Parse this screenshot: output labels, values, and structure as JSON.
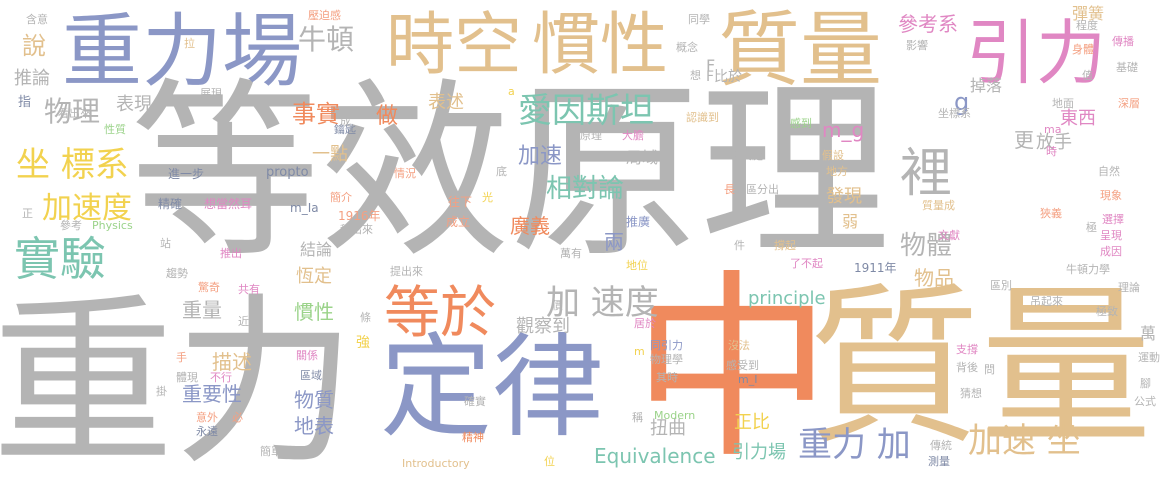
{
  "colors": {
    "gray": "#b4b4b4",
    "blue": "#8b97c6",
    "tan": "#e2c08d",
    "orange": "#f08a5d",
    "pink": "#e087c3",
    "green": "#9bd38a",
    "teal": "#7cc5b0",
    "yellow": "#f2d24f",
    "coral": "#f4a082",
    "slate": "#7f8aa6"
  },
  "words": [
    {
      "text": "等效原理",
      "color": "gray"
    },
    {
      "text": "重力",
      "color": "gray"
    },
    {
      "text": "質量",
      "color": "tan"
    },
    {
      "text": "中",
      "color": "orange"
    },
    {
      "text": "定律",
      "color": "blue"
    },
    {
      "text": "重力場",
      "color": "blue"
    },
    {
      "text": "時空",
      "color": "tan"
    },
    {
      "text": "慣性",
      "color": "tan"
    },
    {
      "text": "質量",
      "color": "tan"
    },
    {
      "text": "引力",
      "color": "pink"
    },
    {
      "text": "等於",
      "color": "orange"
    },
    {
      "text": "實驗",
      "color": "teal"
    },
    {
      "text": "坐 標系",
      "color": "yellow"
    },
    {
      "text": "愛因斯坦",
      "color": "teal"
    },
    {
      "text": "裡",
      "color": "gray"
    },
    {
      "text": "加 速度",
      "color": "gray"
    },
    {
      "text": "加速 坐",
      "color": "tan"
    },
    {
      "text": "重力 加",
      "color": "blue"
    },
    {
      "text": "物理",
      "color": "gray"
    },
    {
      "text": "加速度",
      "color": "yellow"
    },
    {
      "text": "牛頓",
      "color": "gray"
    },
    {
      "text": "事實",
      "color": "orange"
    },
    {
      "text": "相對論",
      "color": "teal"
    },
    {
      "text": "加速",
      "color": "blue"
    },
    {
      "text": "物體",
      "color": "gray"
    },
    {
      "text": "參考系",
      "color": "pink"
    },
    {
      "text": "說",
      "color": "tan"
    },
    {
      "text": "Equivalence",
      "color": "teal"
    },
    {
      "text": "principle",
      "color": "teal"
    },
    {
      "text": "m_g",
      "color": "pink"
    },
    {
      "text": "g",
      "color": "blue"
    },
    {
      "text": "F",
      "color": "gray"
    },
    {
      "text": "F比於",
      "color": "gray"
    },
    {
      "text": "物品",
      "color": "tan"
    },
    {
      "text": "東西",
      "color": "pink"
    },
    {
      "text": "更",
      "color": "gray"
    },
    {
      "text": "放手",
      "color": "gray"
    },
    {
      "text": "表現",
      "color": "gray"
    },
    {
      "text": "表述",
      "color": "tan"
    },
    {
      "text": "推論",
      "color": "gray"
    },
    {
      "text": "做",
      "color": "orange"
    },
    {
      "text": "慣性",
      "color": "green"
    },
    {
      "text": "重量",
      "color": "gray"
    },
    {
      "text": "物質",
      "color": "blue"
    },
    {
      "text": "描述",
      "color": "tan"
    },
    {
      "text": "重要性",
      "color": "blue"
    },
    {
      "text": "地表",
      "color": "blue"
    },
    {
      "text": "觀察到",
      "color": "gray"
    },
    {
      "text": "扭曲",
      "color": "gray"
    },
    {
      "text": "引力場",
      "color": "teal"
    },
    {
      "text": "正比",
      "color": "yellow"
    },
    {
      "text": "廣義",
      "color": "orange"
    },
    {
      "text": "兩",
      "color": "blue"
    },
    {
      "text": "發現",
      "color": "tan"
    },
    {
      "text": "弱",
      "color": "tan"
    },
    {
      "text": "恆定",
      "color": "tan"
    },
    {
      "text": "結論",
      "color": "gray"
    },
    {
      "text": "一點",
      "color": "tan"
    },
    {
      "text": "掉落",
      "color": "gray"
    },
    {
      "text": "彈簧",
      "color": "tan"
    },
    {
      "text": "局域",
      "color": "gray"
    },
    {
      "text": "進一步",
      "color": "slate"
    },
    {
      "text": "propto",
      "color": "slate"
    },
    {
      "text": "精確",
      "color": "slate"
    },
    {
      "text": "想當然耳",
      "color": "pink"
    },
    {
      "text": "m_Ia",
      "color": "slate"
    },
    {
      "text": "1916年",
      "color": "coral"
    },
    {
      "text": "1911年",
      "color": "slate"
    },
    {
      "text": "秤出來",
      "color": "gray"
    },
    {
      "text": "Physics",
      "color": "green"
    },
    {
      "text": "參考",
      "color": "gray"
    },
    {
      "text": "簡介",
      "color": "coral"
    },
    {
      "text": "情況",
      "color": "coral"
    },
    {
      "text": "成立",
      "color": "coral"
    },
    {
      "text": "往下",
      "color": "coral"
    },
    {
      "text": "推廣",
      "color": "blue"
    },
    {
      "text": "萬有",
      "color": "gray"
    },
    {
      "text": "地位",
      "color": "yellow"
    },
    {
      "text": "提出來",
      "color": "gray"
    },
    {
      "text": "趨勢",
      "color": "gray"
    },
    {
      "text": "驚奇",
      "color": "coral"
    },
    {
      "text": "共有",
      "color": "pink"
    },
    {
      "text": "近代",
      "color": "gray"
    },
    {
      "text": "推出",
      "color": "pink"
    },
    {
      "text": "站",
      "color": "gray"
    },
    {
      "text": "物質處",
      "color": "gray"
    },
    {
      "text": "假設",
      "color": "tan"
    },
    {
      "text": "地方",
      "color": "tan"
    },
    {
      "text": "長",
      "color": "coral"
    },
    {
      "text": "區分出",
      "color": "gray"
    },
    {
      "text": "感到",
      "color": "green"
    },
    {
      "text": "認識到",
      "color": "tan"
    },
    {
      "text": "原理",
      "color": "gray"
    },
    {
      "text": "大膽",
      "color": "pink"
    },
    {
      "text": "光",
      "color": "yellow"
    },
    {
      "text": "底",
      "color": "gray"
    },
    {
      "text": "同引力",
      "color": "blue"
    },
    {
      "text": "沒法",
      "color": "tan"
    },
    {
      "text": "物理學",
      "color": "gray"
    },
    {
      "text": "其時",
      "color": "gray"
    },
    {
      "text": "感受到",
      "color": "gray"
    },
    {
      "text": "m_I",
      "color": "slate"
    },
    {
      "text": "m",
      "color": "yellow"
    },
    {
      "text": "Modern",
      "color": "green"
    },
    {
      "text": "Introductory",
      "color": "tan"
    },
    {
      "text": "精神",
      "color": "orange"
    },
    {
      "text": "確實",
      "color": "gray"
    },
    {
      "text": "稱",
      "color": "gray"
    },
    {
      "text": "位",
      "color": "yellow"
    },
    {
      "text": "價",
      "color": "gray"
    },
    {
      "text": "居於",
      "color": "pink"
    },
    {
      "text": "條",
      "color": "gray"
    },
    {
      "text": "強",
      "color": "yellow"
    },
    {
      "text": "關係",
      "color": "pink"
    },
    {
      "text": "區域",
      "color": "slate"
    },
    {
      "text": "體現",
      "color": "gray"
    },
    {
      "text": "不行",
      "color": "pink"
    },
    {
      "text": "意外",
      "color": "coral"
    },
    {
      "text": "必",
      "color": "coral"
    },
    {
      "text": "永遠",
      "color": "slate"
    },
    {
      "text": "簡單",
      "color": "gray"
    },
    {
      "text": "手",
      "color": "coral"
    },
    {
      "text": "掛",
      "color": "gray"
    },
    {
      "text": "同學",
      "color": "gray"
    },
    {
      "text": "概念",
      "color": "gray"
    },
    {
      "text": "想",
      "color": "gray"
    },
    {
      "text": "壓迫感",
      "color": "coral"
    },
    {
      "text": "含意",
      "color": "gray"
    },
    {
      "text": "拉",
      "color": "tan"
    },
    {
      "text": "展現",
      "color": "gray"
    },
    {
      "text": "看出來",
      "color": "gray"
    },
    {
      "text": "性質",
      "color": "green"
    },
    {
      "text": "鑰匙",
      "color": "slate"
    },
    {
      "text": "指",
      "color": "slate"
    },
    {
      "text": "正",
      "color": "gray"
    },
    {
      "text": "a",
      "color": "yellow"
    },
    {
      "text": "成",
      "color": "gray"
    },
    {
      "text": "影響",
      "color": "gray"
    },
    {
      "text": "坐標系",
      "color": "gray"
    },
    {
      "text": "程度",
      "color": "gray"
    },
    {
      "text": "傳播",
      "color": "pink"
    },
    {
      "text": "身體",
      "color": "coral"
    },
    {
      "text": "基礎",
      "color": "gray"
    },
    {
      "text": "值",
      "color": "gray"
    },
    {
      "text": "地面",
      "color": "gray"
    },
    {
      "text": "深層",
      "color": "coral"
    },
    {
      "text": "ma",
      "color": "pink"
    },
    {
      "text": "時",
      "color": "pink"
    },
    {
      "text": "自然",
      "color": "gray"
    },
    {
      "text": "現象",
      "color": "coral"
    },
    {
      "text": "極",
      "color": "gray"
    },
    {
      "text": "選擇",
      "color": "pink"
    },
    {
      "text": "呈現",
      "color": "pink"
    },
    {
      "text": "成因",
      "color": "pink"
    },
    {
      "text": "狹義",
      "color": "coral"
    },
    {
      "text": "質量成",
      "color": "tan"
    },
    {
      "text": "了不起",
      "color": "pink"
    },
    {
      "text": "撐起",
      "color": "tan"
    },
    {
      "text": "文獻",
      "color": "pink"
    },
    {
      "text": "件",
      "color": "gray"
    },
    {
      "text": "牛頓力學",
      "color": "gray"
    },
    {
      "text": "理論",
      "color": "gray"
    },
    {
      "text": "區別",
      "color": "gray"
    },
    {
      "text": "吊起來",
      "color": "gray"
    },
    {
      "text": "極致",
      "color": "gray"
    },
    {
      "text": "萬",
      "color": "gray"
    },
    {
      "text": "支撐",
      "color": "pink"
    },
    {
      "text": "背後",
      "color": "gray"
    },
    {
      "text": "問",
      "color": "gray"
    },
    {
      "text": "猜想",
      "color": "gray"
    },
    {
      "text": "運動",
      "color": "gray"
    },
    {
      "text": "腳",
      "color": "gray"
    },
    {
      "text": "公式",
      "color": "gray"
    },
    {
      "text": "傳統",
      "color": "gray"
    },
    {
      "text": "測量",
      "color": "slate"
    }
  ]
}
